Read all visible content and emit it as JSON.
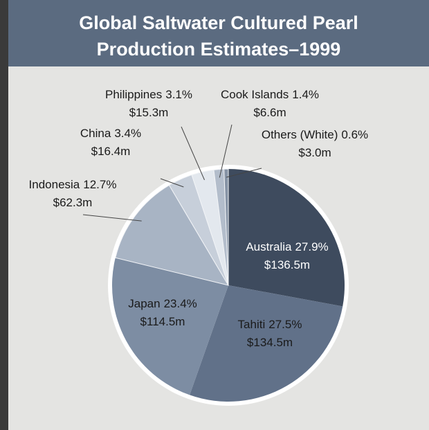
{
  "chart_data": {
    "type": "pie",
    "title": [
      "Global Saltwater Cultured Pearl",
      "Production Estimates–1999"
    ],
    "categories": [
      "Australia",
      "Tahiti",
      "Japan",
      "Indonesia",
      "China",
      "Philippines",
      "Cook Islands",
      "Others (White)"
    ],
    "values": [
      27.9,
      27.5,
      23.4,
      12.7,
      3.4,
      3.1,
      1.4,
      0.6
    ],
    "value_labels": [
      "27.9%",
      "27.5%",
      "23.4%",
      "12.7%",
      "3.4%",
      "3.1%",
      "1.4%",
      "0.6%"
    ],
    "revenue": [
      136.5,
      134.5,
      114.5,
      62.3,
      16.4,
      15.3,
      6.6,
      3.0
    ],
    "revenue_labels": [
      "$136.5m",
      "$134.5m",
      "$114.5m",
      "$62.3m",
      "$16.4m",
      "$15.3m",
      "$6.6m",
      "$3.0m"
    ],
    "colors": [
      "#3e4b5e",
      "#617189",
      "#7d8da3",
      "#a8b4c4",
      "#c7cfda",
      "#e3e8ee",
      "#b3bdcb",
      "#8693a5"
    ]
  }
}
